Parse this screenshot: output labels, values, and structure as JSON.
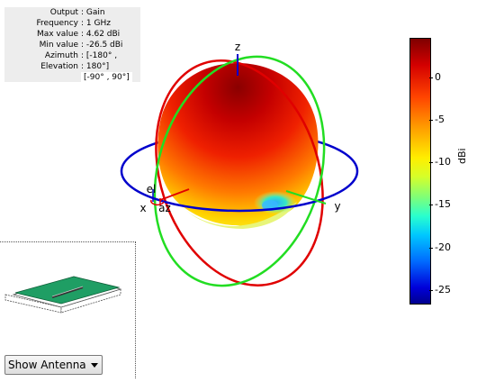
{
  "info": {
    "rows": [
      {
        "label": "Output",
        "value": ": Gain"
      },
      {
        "label": "Frequency",
        "value": ": 1 GHz"
      },
      {
        "label": "Max value",
        "value": ": 4.62 dBi"
      },
      {
        "label": "Min value",
        "value": ": -26.5 dBi"
      },
      {
        "label": "Azimuth",
        "value": ": [-180° ,"
      },
      {
        "label": "Elevation",
        "value": ": 180°]"
      }
    ],
    "extra": "[-90° , 90°]"
  },
  "axes": {
    "z": "z",
    "x": "x",
    "y": "y",
    "el": "el",
    "az": "az"
  },
  "colorbar": {
    "unit": "dBi",
    "ticks": [
      "0",
      "-5",
      "-10",
      "-15",
      "-20",
      "-25"
    ],
    "max": 4.62,
    "min": -26.5
  },
  "dropdown": {
    "label": "Show Antenna"
  },
  "colors": {
    "ring_azimuth": "#0000cc",
    "ring_elevation_red": "#e00000",
    "ring_elevation_green": "#22dd22",
    "antenna_board": "#1f9e64"
  }
}
